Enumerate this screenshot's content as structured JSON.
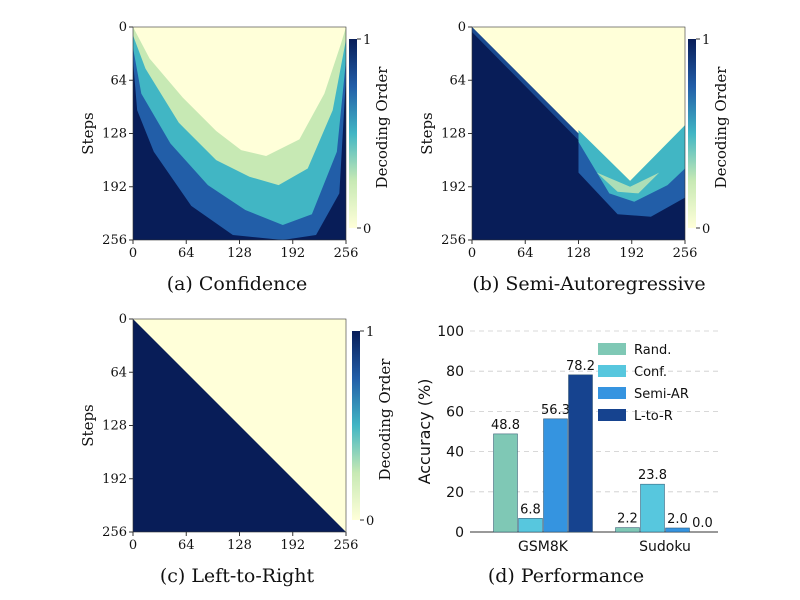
{
  "colors": {
    "heat_low": "#ffffd9",
    "heat_mid": "#41b6c4",
    "heat_high": "#081d58",
    "rand": "#7fc8b5",
    "conf": "#57c7de",
    "semi_ar": "#3594e0",
    "l_to_r": "#16438f"
  },
  "chart_data": [
    {
      "type": "heatmap",
      "id": "a",
      "caption": "(a)",
      "title": "Confidence",
      "ylabel": "Steps",
      "colorbar_label": "Decoding Order",
      "colorbar_ticks": [
        "1",
        "0"
      ],
      "xticks": [
        "0",
        "64",
        "128",
        "192",
        "256"
      ],
      "yticks": [
        "0",
        "64",
        "128",
        "192",
        "256"
      ],
      "xlim": [
        0,
        256
      ],
      "ylim": [
        0,
        256
      ],
      "pattern": "v-shape",
      "boundary_left": [
        [
          0,
          0
        ],
        [
          20,
          38
        ],
        [
          60,
          85
        ],
        [
          100,
          125
        ],
        [
          130,
          148
        ],
        [
          160,
          155
        ],
        [
          200,
          135
        ],
        [
          230,
          80
        ],
        [
          250,
          20
        ],
        [
          256,
          0
        ]
      ],
      "boundary_right": [
        [
          0,
          0
        ],
        [
          30,
          60
        ],
        [
          80,
          150
        ],
        [
          130,
          215
        ],
        [
          180,
          235
        ],
        [
          210,
          230
        ],
        [
          240,
          150
        ],
        [
          256,
          0
        ]
      ]
    },
    {
      "type": "heatmap",
      "id": "b",
      "caption": "(b)",
      "title": "Semi-Autoregressive",
      "ylabel": "Steps",
      "colorbar_label": "Decoding Order",
      "colorbar_ticks": [
        "1",
        "0"
      ],
      "xticks": [
        "0",
        "64",
        "128",
        "192",
        "256"
      ],
      "yticks": [
        "0",
        "64",
        "128",
        "192",
        "256"
      ],
      "xlim": [
        0,
        256
      ],
      "ylim": [
        0,
        256
      ],
      "pattern": "two-block",
      "block_split": 128
    },
    {
      "type": "heatmap",
      "id": "c",
      "caption": "(c)",
      "title": "Left-to-Right",
      "ylabel": "Steps",
      "colorbar_label": "Decoding Order",
      "colorbar_ticks": [
        "1",
        "0"
      ],
      "xticks": [
        "0",
        "64",
        "128",
        "192",
        "256"
      ],
      "yticks": [
        "0",
        "64",
        "128",
        "192",
        "256"
      ],
      "xlim": [
        0,
        256
      ],
      "ylim": [
        0,
        256
      ],
      "pattern": "diagonal"
    },
    {
      "type": "bar",
      "id": "d",
      "caption": "(d)",
      "title": "Performance",
      "ylabel": "Accuracy (%)",
      "ylim": [
        0,
        100
      ],
      "yticks": [
        "0",
        "20",
        "40",
        "60",
        "80",
        "100"
      ],
      "categories": [
        "GSM8K",
        "Sudoku"
      ],
      "series": [
        {
          "name": "Rand.",
          "values": [
            48.8,
            2.2
          ],
          "labels": [
            "48.8",
            "2.2"
          ]
        },
        {
          "name": "Conf.",
          "values": [
            6.8,
            23.8
          ],
          "labels": [
            "6.8",
            "23.8"
          ]
        },
        {
          "name": "Semi-AR",
          "values": [
            56.3,
            2.0
          ],
          "labels": [
            "56.3",
            "2.0"
          ]
        },
        {
          "name": "L-to-R",
          "values": [
            78.2,
            0.0
          ],
          "labels": [
            "78.2",
            "0.0"
          ]
        }
      ],
      "grid": true,
      "legend": "top-right"
    }
  ]
}
